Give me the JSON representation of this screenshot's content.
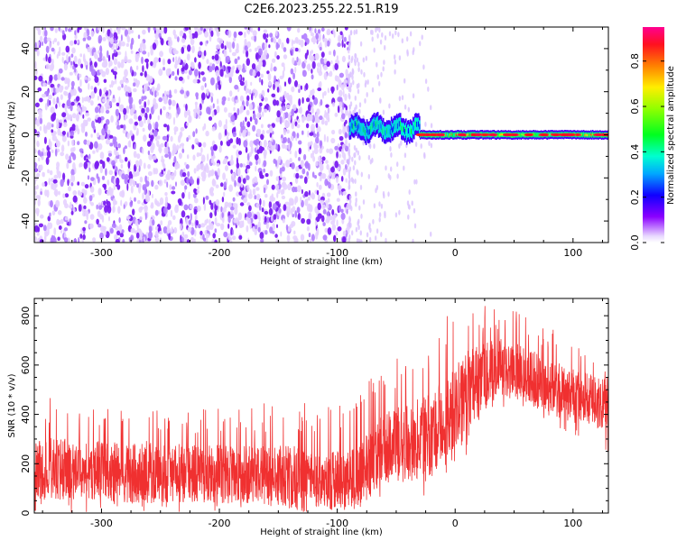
{
  "figure": {
    "title": "C2E6.2023.255.22.51.R19"
  },
  "colors": {
    "snr_line": "#f03030",
    "noise_purple": "#7a1ef0",
    "background": "#ffffff"
  },
  "chart_data": [
    {
      "type": "heatmap",
      "title": "C2E6.2023.255.22.51.R19",
      "xlabel": "Height of straight line (km)",
      "ylabel": "Frequency (Hz)",
      "xlim": [
        -357,
        130
      ],
      "ylim": [
        -50,
        50
      ],
      "x_ticks": [
        -300,
        -200,
        -100,
        0,
        100
      ],
      "y_ticks": [
        -40,
        -20,
        0,
        20,
        40
      ],
      "colorbar": {
        "label": "Normalized spectral amplitude",
        "range": [
          0.0,
          0.95
        ],
        "ticks": [
          0.0,
          0.2,
          0.4,
          0.6,
          0.8
        ],
        "colormap": "gist_rainbow_r (red at max, violet at min)"
      },
      "regions": [
        {
          "x_range": [
            -357,
            -90
          ],
          "freq_range": [
            -50,
            50
          ],
          "description": "broadband noise",
          "amplitude_range": [
            0.0,
            0.1
          ]
        },
        {
          "x_range": [
            -90,
            -30
          ],
          "freq_center": 3,
          "freq_halfwidth": 5,
          "amplitude_range": [
            0.2,
            0.5
          ]
        },
        {
          "x_range": [
            -30,
            130
          ],
          "freq_center": 0,
          "freq_halfwidth": 2,
          "amplitude_range": [
            0.4,
            0.95
          ]
        }
      ],
      "grid": false
    },
    {
      "type": "line",
      "xlabel": "Height of straight line (km)",
      "ylabel": "SNR (10 * v/v)",
      "xlim": [
        -357,
        130
      ],
      "ylim": [
        0,
        870
      ],
      "x_ticks": [
        -300,
        -200,
        -100,
        0,
        100
      ],
      "y_ticks": [
        0,
        200,
        400,
        600,
        800
      ],
      "grid": false,
      "series": [
        {
          "x": [
            -357,
            -340,
            -320,
            -300,
            -280,
            -260,
            -240,
            -220,
            -200,
            -180,
            -160,
            -140,
            -120,
            -100,
            -90,
            -80,
            -70,
            -60,
            -50,
            -40,
            -30,
            -20,
            -10,
            0,
            10,
            20,
            30,
            40,
            50,
            60,
            70,
            80,
            90,
            100,
            110,
            120,
            130
          ],
          "y": [
            170,
            180,
            175,
            172,
            170,
            168,
            165,
            162,
            160,
            155,
            150,
            145,
            140,
            130,
            132,
            150,
            220,
            260,
            280,
            290,
            300,
            320,
            380,
            440,
            480,
            530,
            575,
            590,
            580,
            560,
            540,
            520,
            500,
            490,
            470,
            450,
            440
          ],
          "min": [
            0,
            0,
            0,
            0,
            0,
            0,
            0,
            0,
            0,
            0,
            0,
            0,
            0,
            0,
            0,
            0,
            40,
            80,
            80,
            60,
            60,
            80,
            150,
            180,
            150,
            300,
            400,
            420,
            420,
            400,
            380,
            360,
            340,
            320,
            300,
            260,
            240
          ],
          "max": [
            420,
            480,
            430,
            440,
            470,
            460,
            440,
            430,
            430,
            440,
            450,
            470,
            430,
            440,
            440,
            480,
            560,
            600,
            640,
            660,
            650,
            720,
            820,
            800,
            820,
            830,
            860,
            850,
            840,
            820,
            780,
            760,
            720,
            700,
            680,
            640,
            620
          ]
        }
      ]
    }
  ]
}
